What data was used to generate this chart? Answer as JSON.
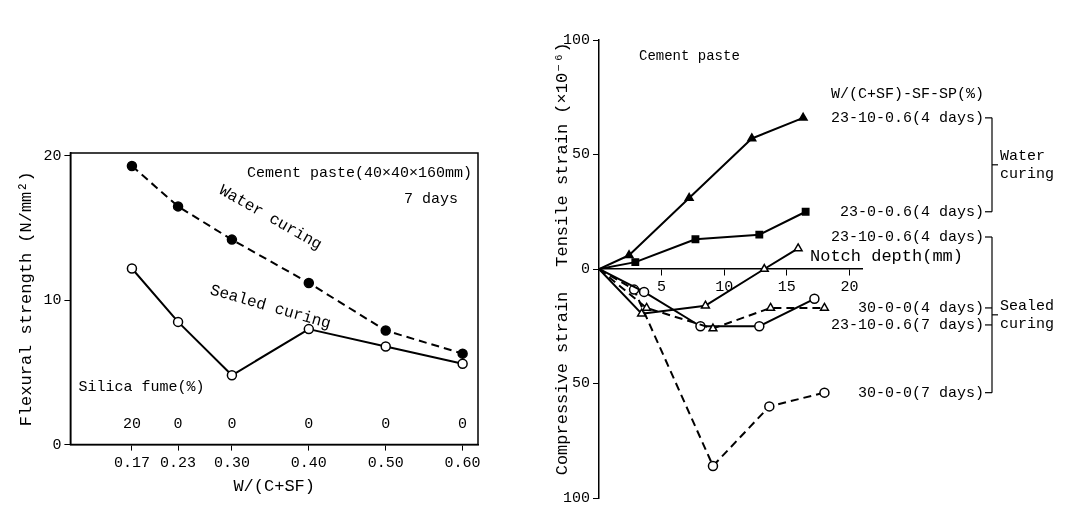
{
  "chart_data": [
    {
      "type": "line",
      "xlabel": "W/(C+SF)",
      "ylabel": "Flexural strength (N/mm²)",
      "x": [
        0.17,
        0.23,
        0.3,
        0.4,
        0.5,
        0.6
      ],
      "xlim": [
        0.09,
        0.62
      ],
      "xticks": [
        0.17,
        0.23,
        {
          "value": 0.3,
          "label": "0.30"
        },
        {
          "value": 0.4,
          "label": "0.40"
        },
        {
          "value": 0.5,
          "label": "0.50"
        },
        {
          "value": 0.6,
          "label": "0.60"
        }
      ],
      "ylim": [
        0,
        20.2
      ],
      "yticks": [
        0,
        10,
        20
      ],
      "annotations": [
        "Cement paste(40×40×160mm)",
        "7 days",
        "Silica fume(%)",
        "20",
        "0",
        "0",
        "0",
        "0",
        "0"
      ],
      "series": [
        {
          "name": "Water curing",
          "color": "#000000",
          "values": [
            19.3,
            16.5,
            14.2,
            11.2,
            7.9,
            6.3
          ],
          "colors": [
            "#000000",
            "#000000",
            "#000000",
            "#000000",
            "#000000",
            "#000000"
          ],
          "marker": "circle",
          "line_style": "dashed"
        },
        {
          "name": "Sealed curing",
          "color": "#000000",
          "values": [
            12.2,
            8.5,
            4.8,
            8.0,
            6.8,
            5.6
          ],
          "colors": [
            "#ffffff",
            "#ffffff",
            "#ffffff",
            "#ffffff",
            "#ffffff",
            "#ffffff"
          ],
          "marker": "circle",
          "line_style": "solid"
        }
      ]
    },
    {
      "type": "line",
      "title": "Cement paste",
      "xlabel": "Notch depth(mm)",
      "ylabel": "Tensile strain (×10⁻⁶)",
      "legend_title": "W/(C+SF)-SF-SP(%)",
      "legend": "right",
      "xlim": [
        0,
        21
      ],
      "xticks": [
        5,
        10,
        15,
        20
      ],
      "ylim": [
        -100,
        100
      ],
      "yticks": [
        {
          "value": -100,
          "label": "100"
        },
        {
          "value": -50,
          "label": "50"
        },
        0,
        50,
        100
      ],
      "annotations": [
        "Compressive strain",
        "Water curing",
        "Sealed curing"
      ],
      "series": [
        {
          "name": "23-10-0.6(4 days)",
          "color": "#000000",
          "x": [
            0,
            2.4,
            7.2,
            12.2,
            16.3
          ],
          "values": [
            0,
            6,
            31,
            57,
            66
          ],
          "colors": [
            null,
            "#000000",
            "#000000",
            "#000000",
            "#000000"
          ],
          "marker": "triangle",
          "line_style": "solid"
        },
        {
          "name": "23-0-0.6(4 days)",
          "color": "#000000",
          "x": [
            0,
            2.9,
            7.7,
            12.8,
            16.5
          ],
          "values": [
            0,
            3,
            13,
            15,
            25
          ],
          "colors": [
            null,
            "#000000",
            "#000000",
            "#000000",
            "#000000"
          ],
          "marker": "square",
          "line_style": "solid"
        },
        {
          "name": "23-10-0.6(4 days)",
          "color": "#000000",
          "x": [
            0,
            3.4,
            8.5,
            13.2,
            15.9
          ],
          "values": [
            0,
            -19.5,
            -16,
            0,
            9
          ],
          "colors": [
            null,
            "#ffffff",
            "#ffffff",
            "#ffffff",
            "#ffffff"
          ],
          "marker": "triangle",
          "line_style": "solid"
        },
        {
          "name": "30-0-0(4 days)",
          "color": "#000000",
          "x": [
            0,
            3.8,
            9.1,
            13.7,
            18.0
          ],
          "values": [
            0,
            -17,
            -26,
            -17,
            -17
          ],
          "colors": [
            null,
            "#ffffff",
            "#ffffff",
            "#ffffff",
            "#ffffff"
          ],
          "marker": "triangle",
          "line_style": "dashed"
        },
        {
          "name": "23-10-0.6(7 days)",
          "color": "#000000",
          "x": [
            0,
            3.6,
            8.1,
            12.8,
            17.2
          ],
          "values": [
            0,
            -10,
            -25,
            -25,
            -13
          ],
          "colors": [
            null,
            "#ffffff",
            "#ffffff",
            "#ffffff",
            "#ffffff"
          ],
          "marker": "circle",
          "line_style": "solid"
        },
        {
          "name": "30-0-0(7 days)",
          "color": "#000000",
          "x": [
            0,
            2.8,
            9.1,
            13.6,
            18.0
          ],
          "values": [
            0,
            -9,
            -86,
            -60,
            -54
          ],
          "colors": [
            null,
            "#ffffff",
            "#ffffff",
            "#ffffff",
            "#ffffff"
          ],
          "marker": "circle",
          "line_style": "dashed"
        }
      ]
    }
  ]
}
